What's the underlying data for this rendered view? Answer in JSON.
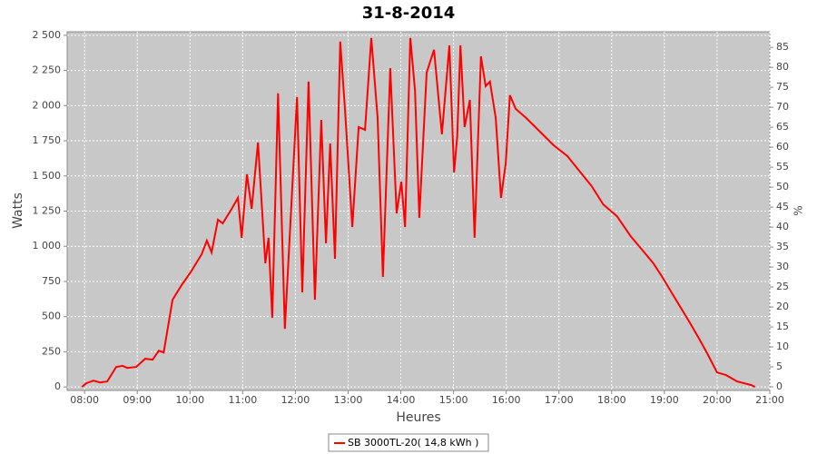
{
  "chart_data": {
    "type": "line",
    "title": "31-8-2014",
    "x_label": "Heures",
    "y_label": "Watts",
    "y2_label": "%",
    "x": [
      7.95,
      8.03,
      8.17,
      8.29,
      8.43,
      8.6,
      8.72,
      8.81,
      8.98,
      9.15,
      9.29,
      9.41,
      9.5,
      9.67,
      9.84,
      10.01,
      10.22,
      10.32,
      10.41,
      10.53,
      10.62,
      10.79,
      10.91,
      10.98,
      11.08,
      11.17,
      11.29,
      11.43,
      11.49,
      11.56,
      11.67,
      11.8,
      12.03,
      12.13,
      12.25,
      12.37,
      12.49,
      12.58,
      12.66,
      12.75,
      12.85,
      12.94,
      13.08,
      13.2,
      13.32,
      13.44,
      13.56,
      13.66,
      13.8,
      13.92,
      14.01,
      14.08,
      14.18,
      14.27,
      14.35,
      14.49,
      14.63,
      14.78,
      14.92,
      15.01,
      15.07,
      15.13,
      15.21,
      15.31,
      15.4,
      15.52,
      15.61,
      15.69,
      15.8,
      15.9,
      15.99,
      16.07,
      16.18,
      16.38,
      16.64,
      16.9,
      17.16,
      17.41,
      17.62,
      17.84,
      18.1,
      18.36,
      18.62,
      18.79,
      18.96,
      19.22,
      19.48,
      19.65,
      19.82,
      20.0,
      20.17,
      20.38,
      20.65,
      20.72
    ],
    "series": [
      {
        "name": "SB 3000TL-20( 14,8 kWh )",
        "color": "#ff0000",
        "values": [
          0,
          26,
          45,
          32,
          39,
          142,
          150,
          135,
          142,
          200,
          194,
          258,
          245,
          620,
          723,
          814,
          943,
          1040,
          956,
          1189,
          1163,
          1266,
          1344,
          1060,
          1512,
          1266,
          1738,
          879,
          1060,
          491,
          2087,
          413,
          2061,
          672,
          2171,
          620,
          1899,
          1021,
          1731,
          911,
          2455,
          1977,
          1137,
          1848,
          1828,
          2481,
          1912,
          782,
          2267,
          1234,
          1460,
          1137,
          2481,
          2106,
          1202,
          2235,
          2397,
          1796,
          2429,
          1525,
          1783,
          2429,
          1848,
          2041,
          1060,
          2351,
          2138,
          2171,
          1912,
          1344,
          1589,
          2074,
          1977,
          1912,
          1815,
          1718,
          1641,
          1525,
          1428,
          1298,
          1214,
          1072,
          956,
          879,
          782,
          620,
          459,
          349,
          233,
          103,
          84,
          39,
          13,
          0
        ]
      }
    ],
    "xlim": [
      7.67,
      21
    ],
    "xticks": [
      {
        "value": 8,
        "label": "08:00"
      },
      {
        "value": 9,
        "label": "09:00"
      },
      {
        "value": 10,
        "label": "10:00"
      },
      {
        "value": 11,
        "label": "11:00"
      },
      {
        "value": 12,
        "label": "12:00"
      },
      {
        "value": 13,
        "label": "13:00"
      },
      {
        "value": 14,
        "label": "14:00"
      },
      {
        "value": 15,
        "label": "15:00"
      },
      {
        "value": 16,
        "label": "16:00"
      },
      {
        "value": 17,
        "label": "17:00"
      },
      {
        "value": 18,
        "label": "18:00"
      },
      {
        "value": 19,
        "label": "19:00"
      },
      {
        "value": 20,
        "label": "20:00"
      },
      {
        "value": 21,
        "label": "21:00"
      }
    ],
    "ylim": [
      -25,
      2525
    ],
    "yticks": [
      0,
      250,
      500,
      750,
      {
        "value": 1000,
        "label": "1 000"
      },
      {
        "value": 1250,
        "label": "1 250"
      },
      {
        "value": 1500,
        "label": "1 500"
      },
      {
        "value": 1750,
        "label": "1 750"
      },
      {
        "value": 2000,
        "label": "2 000"
      },
      {
        "value": 2250,
        "label": "2 250"
      },
      {
        "value": 2500,
        "label": "2 500"
      }
    ],
    "y2lim": [
      -0.9,
      88.9
    ],
    "y2ticks": [
      0,
      5,
      10,
      15,
      20,
      25,
      30,
      35,
      40,
      45,
      50,
      55,
      60,
      65,
      70,
      75,
      80,
      85
    ],
    "grid": true,
    "legend": "bottom"
  }
}
